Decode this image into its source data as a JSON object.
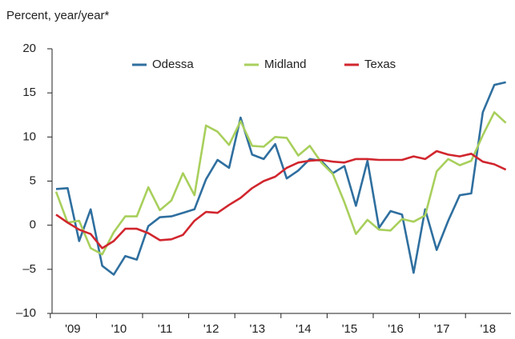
{
  "chart_data": {
    "type": "line",
    "title": "Percent, year/year*",
    "categories": [
      null,
      "'09",
      null,
      null,
      null,
      "'10",
      null,
      null,
      null,
      "'11",
      null,
      null,
      null,
      "'12",
      null,
      null,
      null,
      "'13",
      null,
      null,
      null,
      "'14",
      null,
      null,
      null,
      "'15",
      null,
      null,
      null,
      "'16",
      null,
      null,
      null,
      "'17",
      null,
      null,
      null,
      "'18",
      null,
      null
    ],
    "series": [
      {
        "name": "Odessa",
        "color": "#2f6f9f",
        "values": [
          4.1,
          4.2,
          -1.8,
          1.8,
          -4.6,
          -5.6,
          -3.5,
          -3.9,
          -0.1,
          0.9,
          1.0,
          1.4,
          1.8,
          5.2,
          7.4,
          6.5,
          12.2,
          8.0,
          7.5,
          9.2,
          5.3,
          6.2,
          7.5,
          7.3,
          5.9,
          6.7,
          2.2,
          7.3,
          -0.3,
          1.6,
          1.2,
          -5.4,
          1.8,
          -2.8,
          0.5,
          3.4,
          3.6,
          12.8,
          15.9,
          16.2
        ]
      },
      {
        "name": "Midland",
        "color": "#a8cf5c",
        "values": [
          3.8,
          0.3,
          0.5,
          -2.6,
          -3.3,
          -0.8,
          1.0,
          1.0,
          4.3,
          1.7,
          2.8,
          5.9,
          3.4,
          11.3,
          10.6,
          9.1,
          11.8,
          9.0,
          8.9,
          10.0,
          9.9,
          7.9,
          9.0,
          7.1,
          5.8,
          2.6,
          -1.0,
          0.6,
          -0.5,
          -0.6,
          0.7,
          0.4,
          1.1,
          6.1,
          7.5,
          6.8,
          7.3,
          10.2,
          12.8,
          11.6
        ]
      },
      {
        "name": "Texas",
        "color": "#d1262e",
        "values": [
          1.2,
          0.3,
          -0.5,
          -1.0,
          -2.6,
          -1.8,
          -0.4,
          -0.4,
          -0.9,
          -1.7,
          -1.6,
          -1.1,
          0.5,
          1.5,
          1.4,
          2.3,
          3.1,
          4.2,
          5.0,
          5.5,
          6.5,
          7.1,
          7.3,
          7.4,
          7.2,
          7.1,
          7.5,
          7.5,
          7.4,
          7.4,
          7.4,
          7.8,
          7.5,
          8.4,
          8.0,
          7.8,
          8.1,
          7.2,
          6.9,
          6.3
        ]
      }
    ],
    "ylim": [
      -10,
      20
    ],
    "yticks": [
      {
        "value": -10,
        "label": "–10"
      },
      {
        "value": -5,
        "label": "–5"
      },
      0,
      5,
      10,
      15,
      20
    ],
    "grid": false
  }
}
